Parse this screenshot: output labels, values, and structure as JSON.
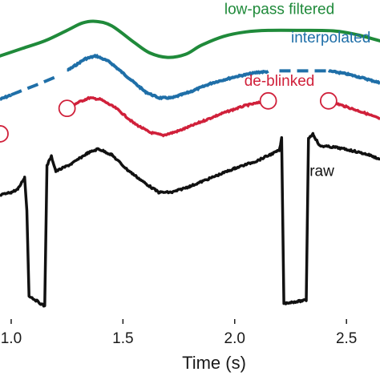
{
  "chart_data": {
    "type": "line",
    "title": "",
    "xlabel": "Time (s)",
    "ylabel": "",
    "xlim": [
      0.95,
      2.65
    ],
    "ylim": [
      0,
      10
    ],
    "xticks": [
      {
        "value": 1.0,
        "label": "1.0"
      },
      {
        "value": 1.5,
        "label": "1.5"
      },
      {
        "value": 2.0,
        "label": "2.0"
      },
      {
        "value": 2.5,
        "label": "2.5"
      }
    ],
    "grid": false,
    "series": [
      {
        "name": "low-pass filtered",
        "color": "#1f8a3a",
        "style": "smooth",
        "label_at": [
          2.2,
          9.75
        ],
        "points": [
          [
            0.95,
            8.35
          ],
          [
            1.05,
            8.6
          ],
          [
            1.15,
            8.85
          ],
          [
            1.25,
            9.2
          ],
          [
            1.32,
            9.45
          ],
          [
            1.38,
            9.5
          ],
          [
            1.45,
            9.35
          ],
          [
            1.55,
            8.8
          ],
          [
            1.62,
            8.45
          ],
          [
            1.7,
            8.3
          ],
          [
            1.78,
            8.4
          ],
          [
            1.85,
            8.7
          ],
          [
            1.95,
            9.0
          ],
          [
            2.05,
            9.15
          ],
          [
            2.15,
            9.2
          ],
          [
            2.3,
            9.2
          ],
          [
            2.45,
            9.18
          ],
          [
            2.55,
            9.05
          ],
          [
            2.65,
            8.85
          ]
        ]
      },
      {
        "name": "interpolated",
        "color": "#1f6fa8",
        "style": "dashed-gaps",
        "label_at": [
          2.43,
          8.8
        ],
        "points": [
          [
            0.95,
            6.9
          ],
          [
            1.0,
            7.05
          ],
          [
            1.05,
            7.2
          ],
          [
            1.12,
            7.4
          ],
          [
            1.2,
            7.65
          ],
          [
            1.27,
            7.95
          ],
          [
            1.33,
            8.25
          ],
          [
            1.38,
            8.35
          ],
          [
            1.44,
            8.15
          ],
          [
            1.52,
            7.65
          ],
          [
            1.6,
            7.15
          ],
          [
            1.66,
            6.95
          ],
          [
            1.72,
            6.95
          ],
          [
            1.8,
            7.15
          ],
          [
            1.9,
            7.45
          ],
          [
            2.0,
            7.65
          ],
          [
            2.1,
            7.8
          ],
          [
            2.2,
            7.85
          ],
          [
            2.3,
            7.85
          ],
          [
            2.42,
            7.85
          ],
          [
            2.5,
            7.75
          ],
          [
            2.58,
            7.6
          ],
          [
            2.65,
            7.45
          ]
        ],
        "gaps": [
          [
            1.0,
            1.25
          ],
          [
            2.15,
            2.42
          ]
        ]
      },
      {
        "name": "de-blinked",
        "color": "#d0203a",
        "style": "noisy-gaps",
        "label_at": [
          2.2,
          7.35
        ],
        "points": [
          [
            1.25,
            6.6
          ],
          [
            1.3,
            6.8
          ],
          [
            1.35,
            6.95
          ],
          [
            1.4,
            6.9
          ],
          [
            1.47,
            6.6
          ],
          [
            1.55,
            6.1
          ],
          [
            1.62,
            5.8
          ],
          [
            1.68,
            5.7
          ],
          [
            1.75,
            5.85
          ],
          [
            1.85,
            6.15
          ],
          [
            1.95,
            6.45
          ],
          [
            2.05,
            6.7
          ],
          [
            2.15,
            6.85
          ],
          [
            2.42,
            6.85
          ],
          [
            2.5,
            6.65
          ],
          [
            2.58,
            6.45
          ],
          [
            2.65,
            6.25
          ]
        ],
        "gaps": [
          [
            2.15,
            2.42
          ]
        ],
        "markers": [
          [
            0.95,
            5.75
          ],
          [
            1.25,
            6.6
          ],
          [
            2.15,
            6.85
          ],
          [
            2.42,
            6.85
          ]
        ]
      },
      {
        "name": "raw",
        "color": "#111111",
        "style": "noisy",
        "label_at": [
          2.39,
          4.35
        ],
        "points": [
          [
            0.95,
            3.7
          ],
          [
            1.0,
            3.8
          ],
          [
            1.03,
            3.9
          ],
          [
            1.06,
            4.3
          ],
          [
            1.07,
            3.2
          ],
          [
            1.08,
            0.35
          ],
          [
            1.15,
            0.0
          ],
          [
            1.16,
            4.7
          ],
          [
            1.18,
            5.0
          ],
          [
            1.2,
            4.5
          ],
          [
            1.27,
            4.75
          ],
          [
            1.34,
            5.1
          ],
          [
            1.39,
            5.25
          ],
          [
            1.45,
            5.05
          ],
          [
            1.52,
            4.55
          ],
          [
            1.6,
            4.1
          ],
          [
            1.66,
            3.8
          ],
          [
            1.72,
            3.8
          ],
          [
            1.8,
            4.0
          ],
          [
            1.9,
            4.3
          ],
          [
            2.0,
            4.6
          ],
          [
            2.1,
            4.85
          ],
          [
            2.2,
            5.2
          ],
          [
            2.21,
            5.6
          ],
          [
            2.22,
            0.1
          ],
          [
            2.32,
            0.2
          ],
          [
            2.33,
            5.6
          ],
          [
            2.35,
            5.75
          ],
          [
            2.38,
            5.35
          ],
          [
            2.45,
            5.3
          ],
          [
            2.52,
            5.2
          ],
          [
            2.6,
            5.05
          ],
          [
            2.65,
            4.9
          ]
        ]
      }
    ]
  }
}
